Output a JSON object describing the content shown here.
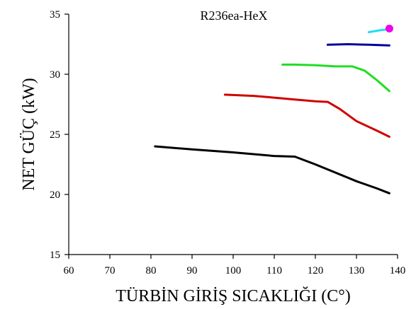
{
  "chart_data": {
    "type": "line",
    "title": "R236ea-HeX",
    "xlabel": "TÜRBİN GİRİŞ SICAKLIĞI (C°)",
    "ylabel": "NET GÜÇ (kW)",
    "xlim": [
      60,
      140
    ],
    "ylim": [
      15,
      35
    ],
    "xticks": [
      60,
      70,
      80,
      90,
      100,
      110,
      120,
      130,
      140
    ],
    "yticks": [
      15,
      20,
      25,
      30,
      35
    ],
    "grid": false,
    "legend": "none",
    "series": [
      {
        "color": "#000000",
        "x": [
          81,
          90,
          100,
          110,
          115,
          120,
          125,
          130,
          135,
          138
        ],
        "y": [
          24.0,
          23.75,
          23.5,
          23.2,
          23.15,
          22.5,
          21.8,
          21.1,
          20.5,
          20.1
        ]
      },
      {
        "color": "#d00000",
        "x": [
          98,
          105,
          110,
          115,
          120,
          123,
          126,
          130,
          135,
          138
        ],
        "y": [
          28.3,
          28.2,
          28.05,
          27.9,
          27.75,
          27.7,
          27.1,
          26.1,
          25.3,
          24.8
        ]
      },
      {
        "color": "#22dd22",
        "x": [
          112,
          115,
          120,
          125,
          129,
          132,
          135,
          138
        ],
        "y": [
          30.8,
          30.8,
          30.75,
          30.65,
          30.65,
          30.3,
          29.5,
          28.6
        ]
      },
      {
        "color": "#000099",
        "x": [
          123,
          128,
          133,
          138
        ],
        "y": [
          32.45,
          32.5,
          32.45,
          32.4
        ]
      },
      {
        "color": "#22ddee",
        "x": [
          133,
          135.5,
          138
        ],
        "y": [
          33.5,
          33.65,
          33.75
        ]
      },
      {
        "color": "#ee00ee",
        "marker": "circle",
        "x": [
          138
        ],
        "y": [
          33.8
        ]
      }
    ]
  }
}
